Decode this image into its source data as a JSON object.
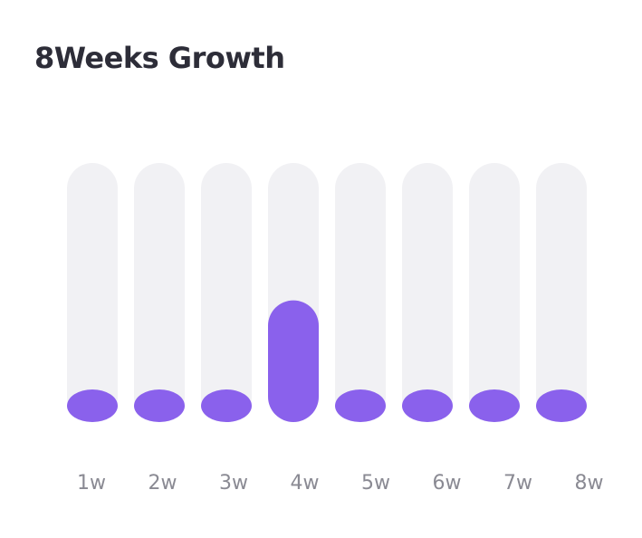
{
  "title": "8Weeks Growth",
  "colors": {
    "track": "#f1f1f4",
    "bar": "#8a61ec",
    "title": "#2d2d38",
    "tick": "#8a8a93"
  },
  "chart_data": {
    "type": "bar",
    "title": "8Weeks Growth",
    "categories": [
      "1w",
      "2w",
      "3w",
      "4w",
      "5w",
      "6w",
      "7w",
      "8w"
    ],
    "values": [
      0,
      0,
      0,
      47,
      0,
      0,
      0,
      0
    ],
    "ylim": [
      0,
      100
    ],
    "xlabel": "",
    "ylabel": "",
    "grid": false
  }
}
